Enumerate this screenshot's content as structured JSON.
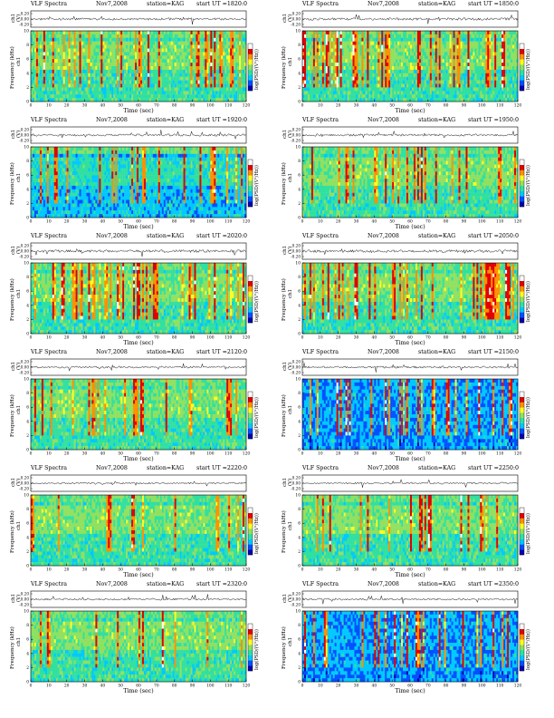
{
  "figure": {
    "panel_template": {
      "title": "VLF Spectra",
      "date": "Nov7,2008",
      "station": "station=KAG",
      "start_prefix": "start  UT =",
      "ch_label": "ch1 (V)",
      "freq_label": "Frequency  (kHz)",
      "channel_label": "ch1",
      "x_label": "Time  (sec)",
      "colorbar_label": "log(PSD/(V²/Hz))"
    }
  },
  "chart_data": [
    {
      "type": "heatmap",
      "title": "VLF Spectra",
      "date": "Nov7,2008",
      "station": "station=KAG",
      "start_ut": "1820:0",
      "xlabel": "Time  (sec)",
      "ylabel": "Frequency  (kHz)",
      "xlim": [
        0,
        120
      ],
      "ylim": [
        0,
        10
      ],
      "xticks": [
        0,
        10,
        20,
        30,
        40,
        50,
        60,
        70,
        80,
        90,
        100,
        110,
        120
      ],
      "yticks": [
        0,
        2,
        4,
        6,
        8,
        10
      ],
      "ch_yticks": [
        "0.20",
        "0.00",
        "-0.20"
      ],
      "colorscale": [
        "#0000b0",
        "#0050ff",
        "#00c8ff",
        "#30e0a0",
        "#90e060",
        "#ffff20",
        "#ff9000",
        "#e00000",
        "#ffffff"
      ],
      "background": "cyan-green",
      "burst_density": 0.55
    },
    {
      "type": "heatmap",
      "title": "VLF Spectra",
      "date": "Nov7,2008",
      "station": "station=KAG",
      "start_ut": "1850:0",
      "xlabel": "Time  (sec)",
      "ylabel": "Frequency  (kHz)",
      "xlim": [
        0,
        120
      ],
      "ylim": [
        0,
        10
      ],
      "xticks": [
        0,
        10,
        20,
        30,
        40,
        50,
        60,
        70,
        80,
        90,
        100,
        110,
        120
      ],
      "yticks": [
        0,
        2,
        4,
        6,
        8,
        10
      ],
      "ch_yticks": [
        "0.20",
        "0.00",
        "-0.20"
      ],
      "colorscale": [
        "#0000b0",
        "#0050ff",
        "#00c8ff",
        "#30e0a0",
        "#90e060",
        "#ffff20",
        "#ff9000",
        "#e00000",
        "#ffffff"
      ],
      "background": "cyan-green",
      "burst_density": 0.6
    },
    {
      "type": "heatmap",
      "title": "VLF Spectra",
      "date": "Nov7,2008",
      "station": "station=KAG",
      "start_ut": "1920:0",
      "xlabel": "Time  (sec)",
      "ylabel": "Frequency  (kHz)",
      "xlim": [
        0,
        120
      ],
      "ylim": [
        0,
        10
      ],
      "xticks": [
        0,
        10,
        20,
        30,
        40,
        50,
        60,
        70,
        80,
        90,
        100,
        110,
        120
      ],
      "yticks": [
        0,
        2,
        4,
        6,
        8,
        10
      ],
      "ch_yticks": [
        "0.20",
        "0.00",
        "-0.20"
      ],
      "colorscale": [
        "#0000b0",
        "#0050ff",
        "#00c8ff",
        "#30e0a0",
        "#90e060",
        "#ffff20",
        "#ff9000",
        "#e00000",
        "#ffffff"
      ],
      "background": "cyan-blue",
      "burst_density": 0.5
    },
    {
      "type": "heatmap",
      "title": "VLF Spectra",
      "date": "Nov7,2008",
      "station": "station=KAG",
      "start_ut": "1950:0",
      "xlabel": "Time  (sec)",
      "ylabel": "Frequency  (kHz)",
      "xlim": [
        0,
        120
      ],
      "ylim": [
        0,
        10
      ],
      "xticks": [
        0,
        10,
        20,
        30,
        40,
        50,
        60,
        70,
        80,
        90,
        100,
        110,
        120
      ],
      "yticks": [
        0,
        2,
        4,
        6,
        8,
        10
      ],
      "ch_yticks": [
        "0.20",
        "0.00",
        "-0.20"
      ],
      "colorscale": [
        "#0000b0",
        "#0050ff",
        "#00c8ff",
        "#30e0a0",
        "#90e060",
        "#ffff20",
        "#ff9000",
        "#e00000",
        "#ffffff"
      ],
      "background": "cyan-green",
      "burst_density": 0.5
    },
    {
      "type": "heatmap",
      "title": "VLF Spectra",
      "date": "Nov7,2008",
      "station": "station=KAG",
      "start_ut": "2020:0",
      "xlabel": "Time  (sec)",
      "ylabel": "Frequency  (kHz)",
      "xlim": [
        0,
        120
      ],
      "ylim": [
        0,
        10
      ],
      "xticks": [
        0,
        10,
        20,
        30,
        40,
        50,
        60,
        70,
        80,
        90,
        100,
        110,
        120
      ],
      "yticks": [
        0,
        2,
        4,
        6,
        8,
        10
      ],
      "ch_yticks": [
        "0.20",
        "0.00",
        "-0.20"
      ],
      "colorscale": [
        "#0000b0",
        "#0050ff",
        "#00c8ff",
        "#30e0a0",
        "#90e060",
        "#ffff20",
        "#ff9000",
        "#e00000",
        "#ffffff"
      ],
      "background": "cyan-green",
      "burst_density": 0.7
    },
    {
      "type": "heatmap",
      "title": "VLF Spectra",
      "date": "Nov7,2008",
      "station": "station=KAG",
      "start_ut": "2050:0",
      "xlabel": "Time  (sec)",
      "ylabel": "Frequency  (kHz)",
      "xlim": [
        0,
        120
      ],
      "ylim": [
        0,
        10
      ],
      "xticks": [
        0,
        10,
        20,
        30,
        40,
        50,
        60,
        70,
        80,
        90,
        100,
        110,
        120
      ],
      "yticks": [
        0,
        2,
        4,
        6,
        8,
        10
      ],
      "ch_yticks": [
        "0.20",
        "0.00",
        "-0.20"
      ],
      "colorscale": [
        "#0000b0",
        "#0050ff",
        "#00c8ff",
        "#30e0a0",
        "#90e060",
        "#ffff20",
        "#ff9000",
        "#e00000",
        "#ffffff"
      ],
      "background": "cyan-green",
      "burst_density": 0.7
    },
    {
      "type": "heatmap",
      "title": "VLF Spectra",
      "date": "Nov7,2008",
      "station": "station=KAG",
      "start_ut": "2120:0",
      "xlabel": "Time  (sec)",
      "ylabel": "Frequency  (kHz)",
      "xlim": [
        0,
        120
      ],
      "ylim": [
        0,
        10
      ],
      "xticks": [
        0,
        10,
        20,
        30,
        40,
        50,
        60,
        70,
        80,
        90,
        100,
        110,
        120
      ],
      "yticks": [
        0,
        2,
        4,
        6,
        8,
        10
      ],
      "ch_yticks": [
        "0.20",
        "0.00",
        "-0.20"
      ],
      "colorscale": [
        "#0000b0",
        "#0050ff",
        "#00c8ff",
        "#30e0a0",
        "#90e060",
        "#ffff20",
        "#ff9000",
        "#e00000",
        "#ffffff"
      ],
      "background": "cyan-green",
      "burst_density": 0.4
    },
    {
      "type": "heatmap",
      "title": "VLF Spectra",
      "date": "Nov7,2008",
      "station": "station=KAG",
      "start_ut": "2150:0",
      "xlabel": "Time  (sec)",
      "ylabel": "Frequency  (kHz)",
      "xlim": [
        0,
        120
      ],
      "ylim": [
        0,
        10
      ],
      "xticks": [
        0,
        10,
        20,
        30,
        40,
        50,
        60,
        70,
        80,
        90,
        100,
        110,
        120
      ],
      "yticks": [
        0,
        2,
        4,
        6,
        8,
        10
      ],
      "ch_yticks": [
        "0.20",
        "0.00",
        "-0.20"
      ],
      "colorscale": [
        "#0000b0",
        "#0050ff",
        "#00c8ff",
        "#30e0a0",
        "#90e060",
        "#ffff20",
        "#ff9000",
        "#e00000",
        "#ffffff"
      ],
      "background": "blue",
      "burst_density": 0.45
    },
    {
      "type": "heatmap",
      "title": "VLF Spectra",
      "date": "Nov7,2008",
      "station": "station=KAG",
      "start_ut": "2220:0",
      "xlabel": "Time  (sec)",
      "ylabel": "Frequency  (kHz)",
      "xlim": [
        0,
        120
      ],
      "ylim": [
        0,
        10
      ],
      "xticks": [
        0,
        10,
        20,
        30,
        40,
        50,
        60,
        70,
        80,
        90,
        100,
        110,
        120
      ],
      "yticks": [
        0,
        2,
        4,
        6,
        8,
        10
      ],
      "ch_yticks": [
        "0.20",
        "0.00",
        "-0.20"
      ],
      "colorscale": [
        "#0000b0",
        "#0050ff",
        "#00c8ff",
        "#30e0a0",
        "#90e060",
        "#ffff20",
        "#ff9000",
        "#e00000",
        "#ffffff"
      ],
      "background": "cyan-green",
      "burst_density": 0.3
    },
    {
      "type": "heatmap",
      "title": "VLF Spectra",
      "date": "Nov7,2008",
      "station": "station=KAG",
      "start_ut": "2250:0",
      "xlabel": "Time  (sec)",
      "ylabel": "Frequency  (kHz)",
      "xlim": [
        0,
        120
      ],
      "ylim": [
        0,
        10
      ],
      "xticks": [
        0,
        10,
        20,
        30,
        40,
        50,
        60,
        70,
        80,
        90,
        100,
        110,
        120
      ],
      "yticks": [
        0,
        2,
        4,
        6,
        8,
        10
      ],
      "ch_yticks": [
        "0.20",
        "0.00",
        "-0.20"
      ],
      "colorscale": [
        "#0000b0",
        "#0050ff",
        "#00c8ff",
        "#30e0a0",
        "#90e060",
        "#ffff20",
        "#ff9000",
        "#e00000",
        "#ffffff"
      ],
      "background": "cyan-green",
      "burst_density": 0.3
    },
    {
      "type": "heatmap",
      "title": "VLF Spectra",
      "date": "Nov7,2008",
      "station": "station=KAG",
      "start_ut": "2320:0",
      "xlabel": "Time  (sec)",
      "ylabel": "Frequency  (kHz)",
      "xlim": [
        0,
        120
      ],
      "ylim": [
        0,
        10
      ],
      "xticks": [
        0,
        10,
        20,
        30,
        40,
        50,
        60,
        70,
        80,
        90,
        100,
        110,
        120
      ],
      "yticks": [
        0,
        2,
        4,
        6,
        8,
        10
      ],
      "ch_yticks": [
        "0.20",
        "0.00",
        "-0.20"
      ],
      "colorscale": [
        "#0000b0",
        "#0050ff",
        "#00c8ff",
        "#30e0a0",
        "#90e060",
        "#ffff20",
        "#ff9000",
        "#e00000",
        "#ffffff"
      ],
      "background": "cyan-green",
      "burst_density": 0.35
    },
    {
      "type": "heatmap",
      "title": "VLF Spectra",
      "date": "Nov7,2008",
      "station": "station=KAG",
      "start_ut": "2350:0",
      "xlabel": "Time  (sec)",
      "ylabel": "Frequency  (kHz)",
      "xlim": [
        0,
        120
      ],
      "ylim": [
        0,
        10
      ],
      "xticks": [
        0,
        10,
        20,
        30,
        40,
        50,
        60,
        70,
        80,
        90,
        100,
        110,
        120
      ],
      "yticks": [
        0,
        2,
        4,
        6,
        8,
        10
      ],
      "ch_yticks": [
        "0.20",
        "0.00",
        "-0.20"
      ],
      "colorscale": [
        "#0000b0",
        "#0050ff",
        "#00c8ff",
        "#30e0a0",
        "#90e060",
        "#ffff20",
        "#ff9000",
        "#e00000",
        "#ffffff"
      ],
      "background": "blue",
      "burst_density": 0.4
    }
  ]
}
